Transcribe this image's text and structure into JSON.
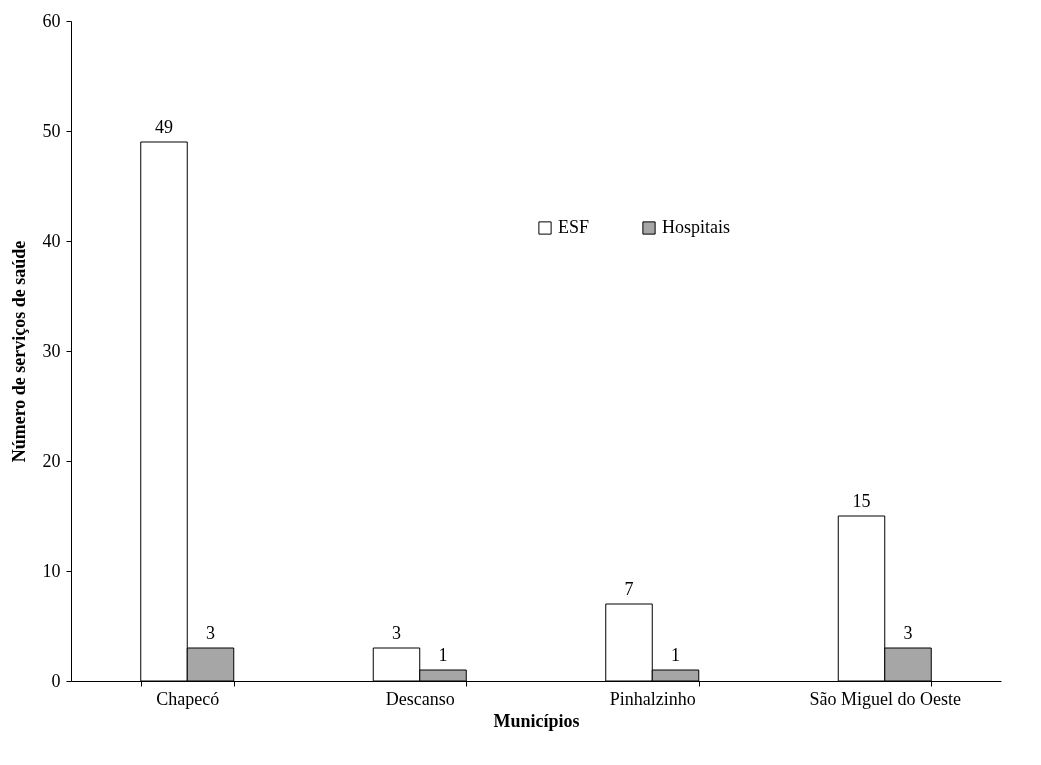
{
  "chart_data": {
    "type": "bar",
    "xlabel": "Municípios",
    "ylabel": "Número de serviços de saúde",
    "categories": [
      "Chapecó",
      "Descanso",
      "Pinhalzinho",
      "São Miguel do Oeste"
    ],
    "series": [
      {
        "name": "ESF",
        "color": "#ffffff",
        "values": [
          49,
          3,
          7,
          15
        ]
      },
      {
        "name": "Hospitais",
        "color": "#a6a6a6",
        "values": [
          3,
          1,
          1,
          3
        ]
      }
    ],
    "ylim": [
      0,
      60
    ],
    "yticks": [
      0,
      10,
      20,
      30,
      40,
      50,
      60
    ],
    "grid": false,
    "legend": "top right",
    "data_labels": true
  }
}
